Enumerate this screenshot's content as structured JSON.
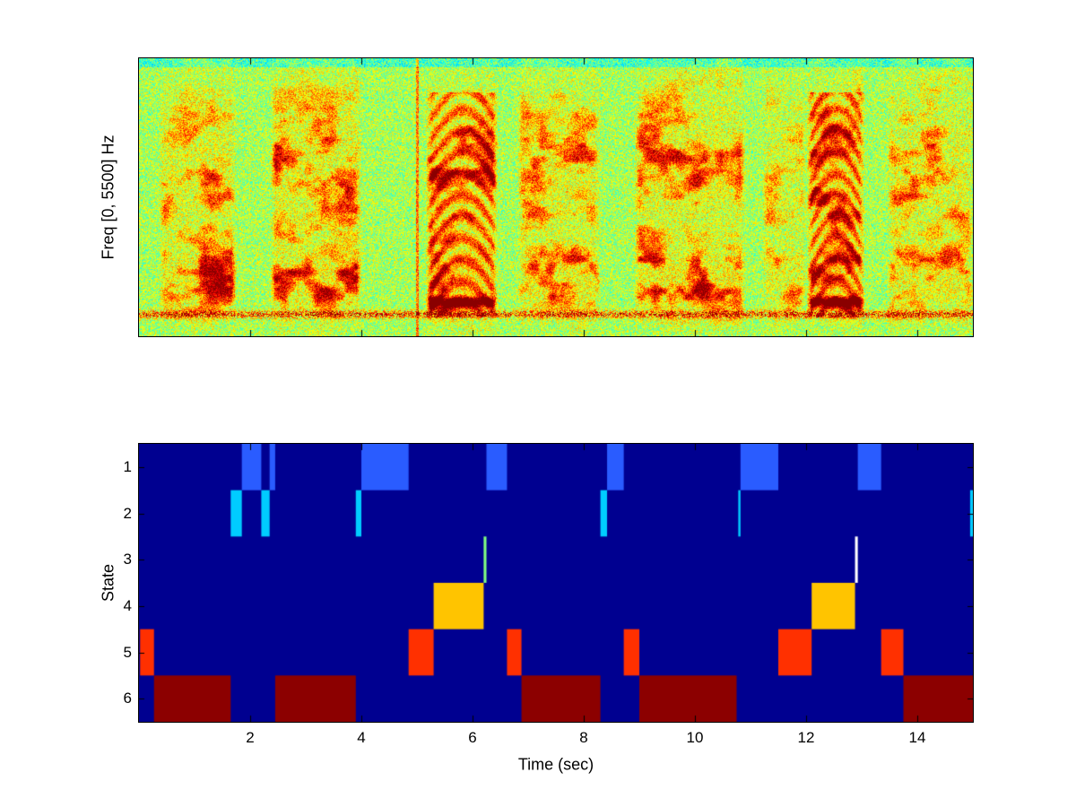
{
  "figure": {
    "background": "#FFFFFF"
  },
  "chart_data": [
    {
      "id": "spectrogram",
      "type": "heatmap",
      "subtype": "spectrogram",
      "ylabel": "Freq [0, 5500] Hz",
      "x_range": [
        0,
        15
      ],
      "freq_range_hz": [
        0,
        5500
      ],
      "colormap": "jet",
      "x_ticks": [
        2,
        4,
        6,
        8,
        10,
        12,
        14
      ],
      "voiced_segments": [
        {
          "start": 0.35,
          "end": 1.75,
          "kind": "broadband",
          "strength": 0.95
        },
        {
          "start": 2.35,
          "end": 4.0,
          "kind": "broadband",
          "strength": 1.0
        },
        {
          "start": 5.15,
          "end": 6.45,
          "kind": "harmonic",
          "strength": 0.9
        },
        {
          "start": 6.8,
          "end": 8.3,
          "kind": "broadband",
          "strength": 0.95
        },
        {
          "start": 8.9,
          "end": 10.9,
          "kind": "broadband",
          "strength": 1.0
        },
        {
          "start": 11.2,
          "end": 12.0,
          "kind": "broadband",
          "strength": 0.7
        },
        {
          "start": 12.0,
          "end": 13.05,
          "kind": "harmonic",
          "strength": 0.9
        },
        {
          "start": 13.45,
          "end": 15.0,
          "kind": "broadband",
          "strength": 0.9
        }
      ],
      "transient_lines": [
        5.0
      ],
      "persistent_low_band": {
        "rel_freq_from_top": 0.92
      }
    },
    {
      "id": "state-sequence",
      "type": "heatmap",
      "subtype": "state-path",
      "xlabel": "Time (sec)",
      "ylabel": "State",
      "x_range": [
        0,
        15
      ],
      "x_ticks": [
        2,
        4,
        6,
        8,
        10,
        12,
        14
      ],
      "y_ticks": [
        1,
        2,
        3,
        4,
        5,
        6
      ],
      "background": "#000090",
      "state_colors": {
        "1": "#2A5CFF",
        "2": "#00CCFF",
        "3": "#80FF80",
        "4": "#FFC400",
        "5": "#FF3000",
        "6": "#8C0000"
      },
      "segments": [
        {
          "state": 5,
          "start": 0.02,
          "end": 0.27
        },
        {
          "state": 6,
          "start": 0.27,
          "end": 1.65
        },
        {
          "state": 2,
          "start": 1.65,
          "end": 1.85
        },
        {
          "state": 1,
          "start": 1.85,
          "end": 2.2
        },
        {
          "state": 2,
          "start": 2.2,
          "end": 2.35
        },
        {
          "state": 1,
          "start": 2.35,
          "end": 2.45
        },
        {
          "state": 6,
          "start": 2.45,
          "end": 3.9
        },
        {
          "state": 2,
          "start": 3.9,
          "end": 4.0
        },
        {
          "state": 1,
          "start": 4.0,
          "end": 4.85
        },
        {
          "state": 5,
          "start": 4.85,
          "end": 5.3
        },
        {
          "state": 4,
          "start": 5.3,
          "end": 6.2
        },
        {
          "state": 3,
          "start": 6.2,
          "end": 6.25
        },
        {
          "state": 1,
          "start": 6.25,
          "end": 6.62
        },
        {
          "state": 5,
          "start": 6.62,
          "end": 6.88
        },
        {
          "state": 6,
          "start": 6.88,
          "end": 8.3
        },
        {
          "state": 2,
          "start": 8.3,
          "end": 8.42
        },
        {
          "state": 1,
          "start": 8.42,
          "end": 8.72
        },
        {
          "state": 5,
          "start": 8.72,
          "end": 9.0
        },
        {
          "state": 6,
          "start": 9.0,
          "end": 10.75
        },
        {
          "state": 2,
          "start": 10.78,
          "end": 10.82
        },
        {
          "state": 1,
          "start": 10.82,
          "end": 11.5
        },
        {
          "state": 5,
          "start": 11.5,
          "end": 12.1
        },
        {
          "state": 4,
          "start": 12.1,
          "end": 12.88
        },
        {
          "state": 3,
          "start": 12.88,
          "end": 12.93,
          "color": "#FFFFFF"
        },
        {
          "state": 1,
          "start": 12.93,
          "end": 13.35
        },
        {
          "state": 5,
          "start": 13.35,
          "end": 13.75
        },
        {
          "state": 6,
          "start": 13.75,
          "end": 15.0
        },
        {
          "state": 2,
          "start": 14.95,
          "end": 15.0
        }
      ]
    }
  ]
}
